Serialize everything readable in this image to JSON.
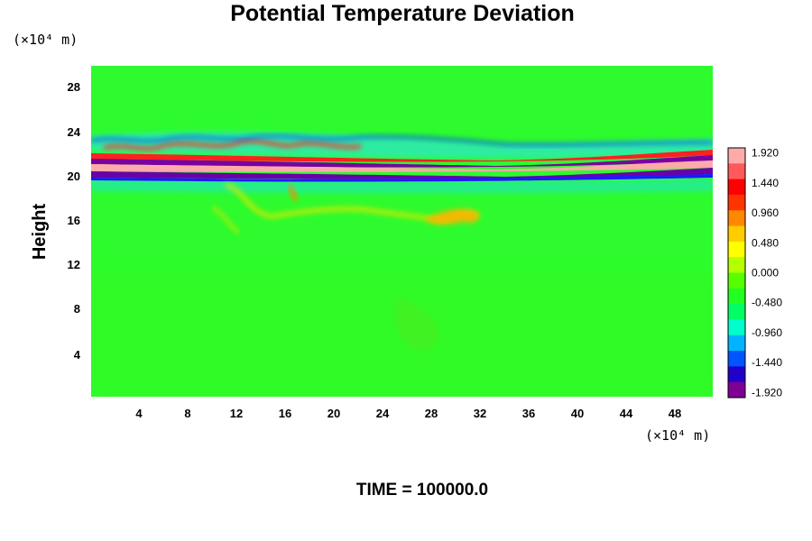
{
  "chart_data": {
    "type": "heatmap",
    "title": "Potential Temperature Deviation",
    "ylabel": "Height",
    "xlabel": "",
    "x_unit_label": "(×10⁴ m)",
    "y_unit_label": "(×10⁴ m)",
    "time_label": "TIME = 100000.0",
    "xlim": [
      0,
      51
    ],
    "ylim": [
      0,
      30
    ],
    "x_ticks": [
      4,
      8,
      12,
      16,
      20,
      24,
      28,
      32,
      36,
      40,
      44,
      48
    ],
    "y_ticks": [
      4,
      8,
      12,
      16,
      20,
      24,
      28
    ],
    "colorbar": {
      "range": [
        -2.0,
        2.0
      ],
      "ticks": [
        1.92,
        1.44,
        0.96,
        0.48,
        0.0,
        -0.48,
        -0.96,
        -1.44,
        -1.92
      ],
      "tick_labels": [
        "1.920",
        "1.440",
        "0.960",
        "0.480",
        "0.000",
        "-0.480",
        "-0.960",
        "-1.440",
        "-1.920"
      ],
      "colors": [
        "#7e0094",
        "#2200cc",
        "#0055ff",
        "#00b4ff",
        "#00ffcc",
        "#00ff66",
        "#22ff22",
        "#55ff00",
        "#b4ff00",
        "#ffff00",
        "#ffcc00",
        "#ff8800",
        "#ff3300",
        "#ff0000",
        "#ff5a5a",
        "#ffaaaa"
      ]
    },
    "background_value": 0.0,
    "features": [
      {
        "name": "main band",
        "x_range": [
          0,
          51
        ],
        "y_center": 20.8,
        "anomaly": "strong alternating -1.92 / +1.92 layers"
      },
      {
        "name": "upper disturbance",
        "x_range": [
          0,
          20
        ],
        "y_center": 22.5,
        "anomaly": "wave pattern +/- 1.4"
      },
      {
        "name": "plume",
        "x_range": [
          12,
          32
        ],
        "y_center": 16.5,
        "anomaly": "+0.5 to +1.0"
      }
    ]
  }
}
